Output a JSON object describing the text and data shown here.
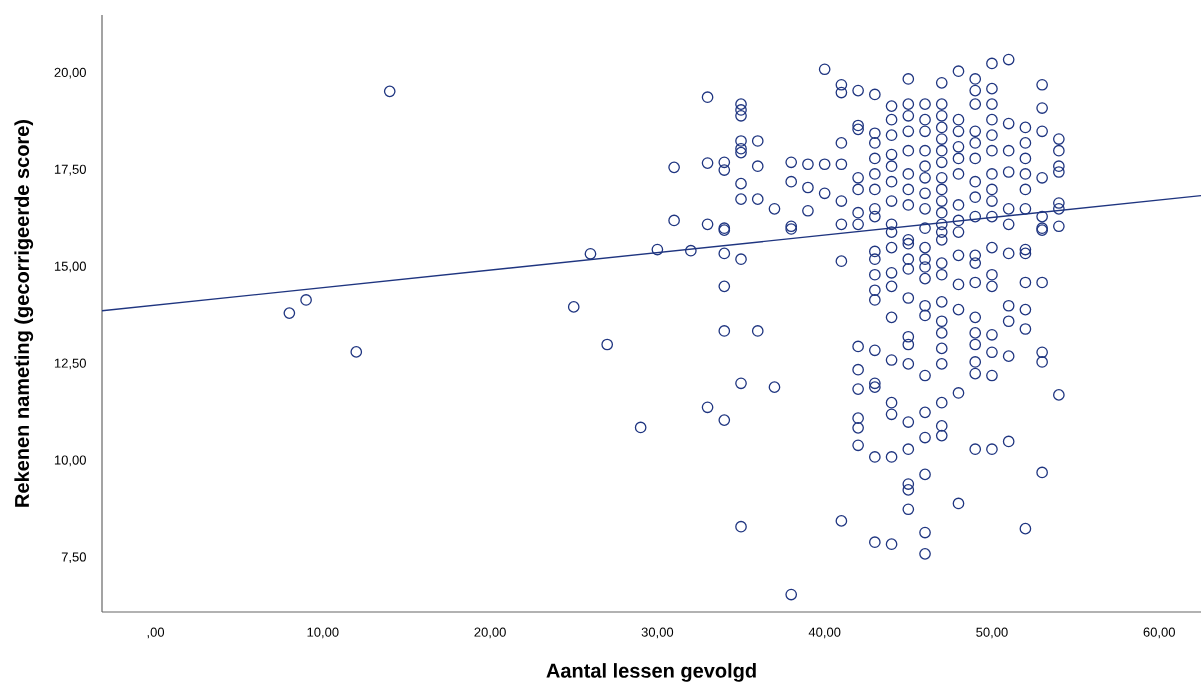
{
  "chart_data": {
    "type": "scatter",
    "xlabel": "Aantal lessen gevolgd",
    "ylabel": "Rekenen nameting (gecorrigeerde score)",
    "xlim": [
      -3.2,
      62.5
    ],
    "ylim": [
      6.1,
      21.5
    ],
    "xticks": [
      {
        "value": 0,
        "label": ",00"
      },
      {
        "value": 10,
        "label": "10,00"
      },
      {
        "value": 20,
        "label": "20,00"
      },
      {
        "value": 30,
        "label": "30,00"
      },
      {
        "value": 40,
        "label": "40,00"
      },
      {
        "value": 50,
        "label": "50,00"
      },
      {
        "value": 60,
        "label": "60,00"
      }
    ],
    "yticks": [
      {
        "value": 7.5,
        "label": "7,50"
      },
      {
        "value": 10,
        "label": "10,00"
      },
      {
        "value": 12.5,
        "label": "12,50"
      },
      {
        "value": 15,
        "label": "15,00"
      },
      {
        "value": 17.5,
        "label": "17,50"
      },
      {
        "value": 20,
        "label": "20,00"
      }
    ],
    "series": [
      {
        "color": "#1f3580",
        "marker": "circle",
        "x": [
          14,
          8,
          9,
          12,
          25,
          26,
          27,
          29,
          30,
          31,
          31,
          32,
          33,
          33,
          33,
          33,
          34,
          34,
          34,
          34,
          34,
          34,
          34,
          34,
          35,
          35,
          35,
          35,
          35,
          35,
          35,
          35,
          35,
          35,
          35,
          36,
          36,
          36,
          36,
          37,
          37,
          38,
          38,
          38,
          38,
          38,
          39,
          39,
          39,
          40,
          40,
          40,
          41,
          41,
          41,
          41,
          41,
          41,
          41,
          41,
          42,
          42,
          42,
          42,
          42,
          42,
          42,
          42,
          42,
          42,
          42,
          42,
          42,
          43,
          43,
          43,
          43,
          43,
          43,
          43,
          43,
          43,
          43,
          43,
          43,
          43,
          43,
          43,
          43,
          43,
          43,
          44,
          44,
          44,
          44,
          44,
          44,
          44,
          44,
          44,
          44,
          44,
          44,
          44,
          44,
          44,
          44,
          44,
          44,
          45,
          45,
          45,
          45,
          45,
          45,
          45,
          45,
          45,
          45,
          45,
          45,
          45,
          45,
          45,
          45,
          45,
          45,
          45,
          45,
          45,
          46,
          46,
          46,
          46,
          46,
          46,
          46,
          46,
          46,
          46,
          46,
          46,
          46,
          46,
          46,
          46,
          46,
          46,
          46,
          46,
          46,
          47,
          47,
          47,
          47,
          47,
          47,
          47,
          47,
          47,
          47,
          47,
          47,
          47,
          47,
          47,
          47,
          47,
          47,
          47,
          47,
          47,
          47,
          47,
          47,
          48,
          48,
          48,
          48,
          48,
          48,
          48,
          48,
          48,
          48,
          48,
          48,
          48,
          48,
          49,
          49,
          49,
          49,
          49,
          49,
          49,
          49,
          49,
          49,
          49,
          49,
          49,
          49,
          49,
          49,
          49,
          49,
          50,
          50,
          50,
          50,
          50,
          50,
          50,
          50,
          50,
          50,
          50,
          50,
          50,
          50,
          50,
          50,
          50,
          51,
          51,
          51,
          51,
          51,
          51,
          51,
          51,
          51,
          51,
          51,
          52,
          52,
          52,
          52,
          52,
          52,
          52,
          52,
          52,
          52,
          52,
          52,
          53,
          53,
          53,
          53,
          53,
          53,
          53,
          53,
          53,
          53,
          53,
          54,
          54,
          54,
          54,
          54,
          54,
          54,
          54
        ],
        "values": [
          19.53,
          13.81,
          14.15,
          12.81,
          13.97,
          15.34,
          13.0,
          10.86,
          15.45,
          17.57,
          16.2,
          15.42,
          19.38,
          17.68,
          16.1,
          11.38,
          17.7,
          17.5,
          16.0,
          15.95,
          15.35,
          14.5,
          13.35,
          11.05,
          19.2,
          19.05,
          18.9,
          18.25,
          18.05,
          17.95,
          17.15,
          16.75,
          15.2,
          12.0,
          8.3,
          18.25,
          17.6,
          16.75,
          13.35,
          16.5,
          11.9,
          17.7,
          17.2,
          16.05,
          15.98,
          6.55,
          17.65,
          17.05,
          16.45,
          20.1,
          17.65,
          16.9,
          19.7,
          19.5,
          18.2,
          17.65,
          16.7,
          16.1,
          15.15,
          8.45,
          19.55,
          18.65,
          18.55,
          17.3,
          17.0,
          16.4,
          16.1,
          12.95,
          12.35,
          11.85,
          11.1,
          10.85,
          10.4,
          19.45,
          18.45,
          18.2,
          17.8,
          17.4,
          17.0,
          16.5,
          16.3,
          15.4,
          15.2,
          14.8,
          14.4,
          14.15,
          12.85,
          12.0,
          11.9,
          10.1,
          7.9,
          19.15,
          18.8,
          18.4,
          17.9,
          17.6,
          17.2,
          16.7,
          16.1,
          15.9,
          15.5,
          14.85,
          14.5,
          13.7,
          12.6,
          11.5,
          11.2,
          10.1,
          7.85,
          19.85,
          19.2,
          18.9,
          18.5,
          18.0,
          17.4,
          17.0,
          16.6,
          15.7,
          15.6,
          15.2,
          14.95,
          14.2,
          13.2,
          13.0,
          12.5,
          11.0,
          10.3,
          9.4,
          9.25,
          8.75,
          19.2,
          18.8,
          18.5,
          18.0,
          17.6,
          17.3,
          16.9,
          16.5,
          16.0,
          15.5,
          15.2,
          15.0,
          14.7,
          14.0,
          13.75,
          12.2,
          11.25,
          10.6,
          9.65,
          8.15,
          7.6,
          19.75,
          19.2,
          18.9,
          18.6,
          18.3,
          18.0,
          17.7,
          17.3,
          17.0,
          16.7,
          16.4,
          16.1,
          15.9,
          15.7,
          15.1,
          14.8,
          14.1,
          13.6,
          13.3,
          12.9,
          12.5,
          11.5,
          10.9,
          10.65,
          20.05,
          18.8,
          18.5,
          18.1,
          17.8,
          17.4,
          16.6,
          16.2,
          15.9,
          15.3,
          14.55,
          13.9,
          11.75,
          8.9,
          19.85,
          19.55,
          19.2,
          18.5,
          18.2,
          17.8,
          17.2,
          16.8,
          16.3,
          15.3,
          15.1,
          14.6,
          13.7,
          13.3,
          13.0,
          12.55,
          12.25,
          10.3,
          20.25,
          19.6,
          19.2,
          18.8,
          18.4,
          18.0,
          17.4,
          17.0,
          16.7,
          16.3,
          15.5,
          14.8,
          14.5,
          13.25,
          12.8,
          12.2,
          10.3,
          20.35,
          18.7,
          18.0,
          17.45,
          16.5,
          16.1,
          15.35,
          14.0,
          13.6,
          12.7,
          10.5,
          18.6,
          18.2,
          17.8,
          17.4,
          17.0,
          16.5,
          15.45,
          15.35,
          14.6,
          13.9,
          13.4,
          8.25,
          19.7,
          19.1,
          18.5,
          17.3,
          16.3,
          16.0,
          15.95,
          14.6,
          12.8,
          12.55,
          9.7,
          18.3,
          18.0,
          17.6,
          17.45,
          16.65,
          16.5,
          16.05,
          11.7
        ]
      },
      {
        "type": "line",
        "color": "#1f3580",
        "x": [
          -3.2,
          62.5
        ],
        "values": [
          13.87,
          16.84
        ]
      }
    ]
  }
}
